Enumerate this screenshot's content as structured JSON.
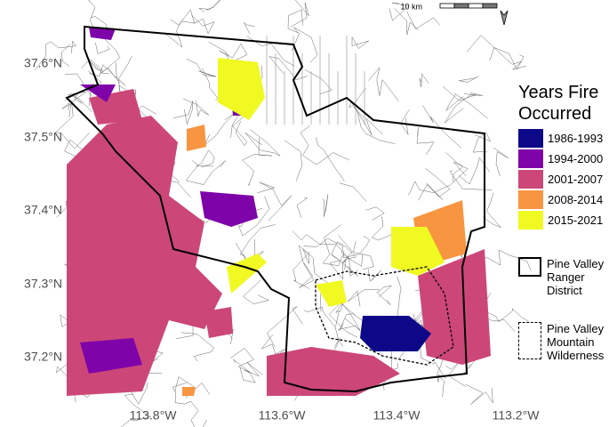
{
  "map": {
    "scale_bar": "10 km",
    "lat_labels": [
      "37.6°N",
      "37.5°N",
      "37.4°N",
      "37.3°N",
      "37.2°N"
    ],
    "lon_labels": [
      "113.8°W",
      "113.6°W",
      "113.4°W",
      "113.2°W"
    ]
  },
  "legend": {
    "title": "Years Fire Occurred",
    "items": [
      {
        "label": "1986-1993",
        "color": "#0d0887"
      },
      {
        "label": "1994-2000",
        "color": "#7e03a8"
      },
      {
        "label": "2001-2007",
        "color": "#cc4778"
      },
      {
        "label": "2008-2014",
        "color": "#f89540"
      },
      {
        "label": "2015-2021",
        "color": "#f0f921"
      }
    ],
    "district": "Pine Valley Ranger District",
    "wilderness": "Pine Valley Mountain Wilderness"
  }
}
